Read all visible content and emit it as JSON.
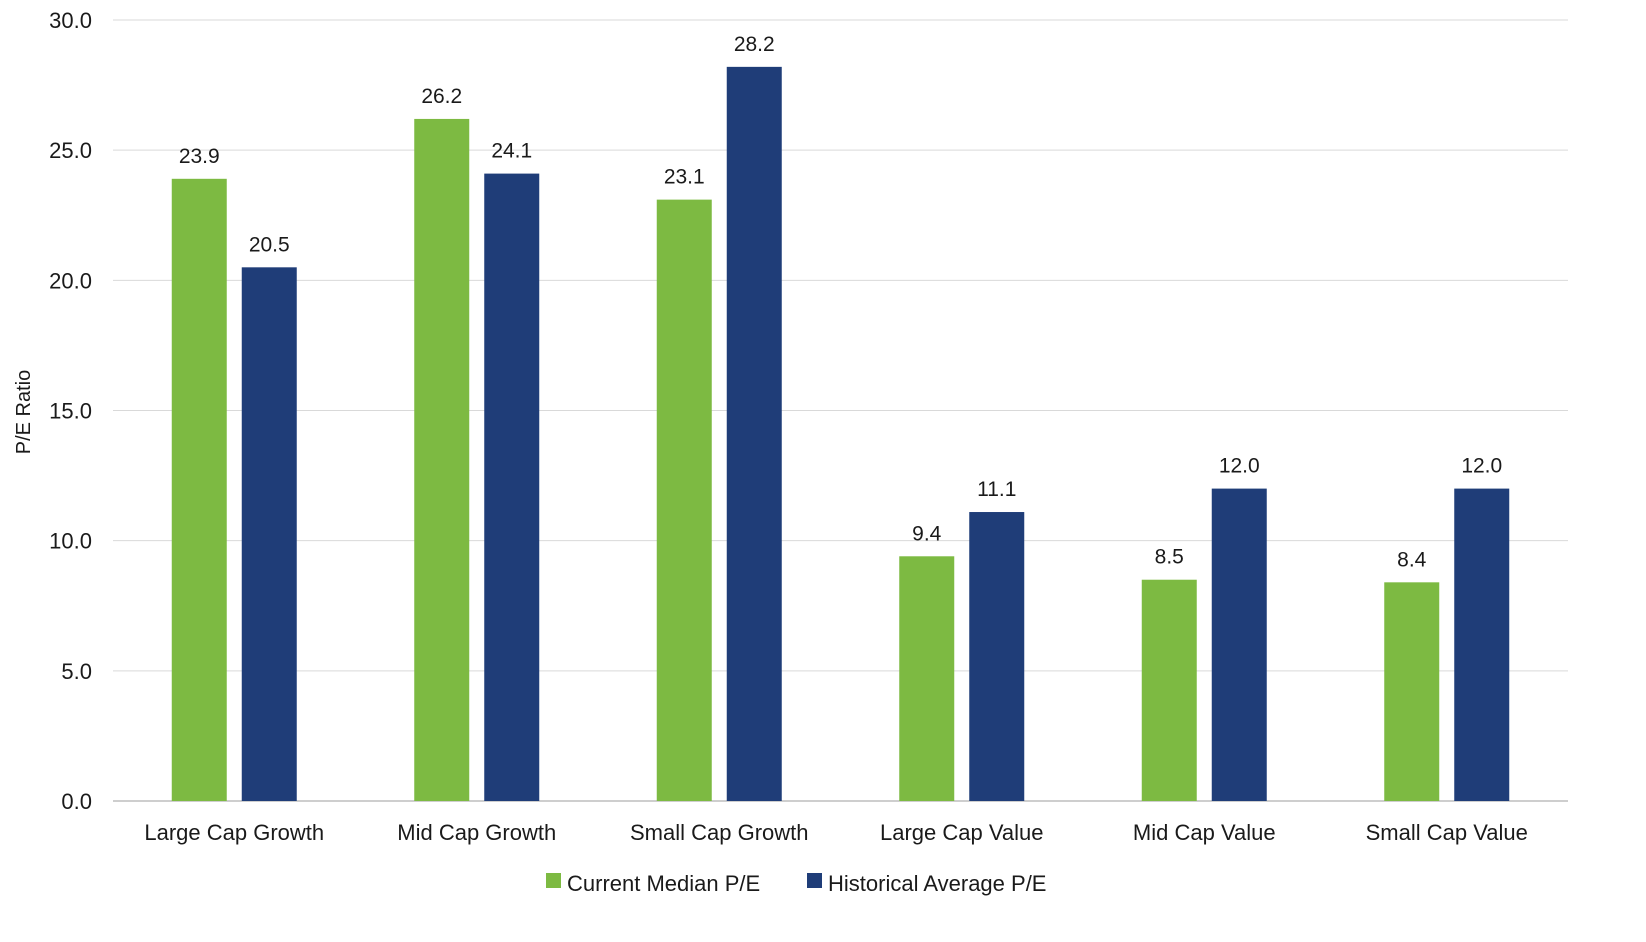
{
  "chart_data": {
    "type": "bar",
    "title": "",
    "xlabel": "",
    "ylabel": "P/E Ratio",
    "ylim": [
      0,
      30
    ],
    "yticks": [
      "0.0",
      "5.0",
      "10.0",
      "15.0",
      "20.0",
      "25.0",
      "30.0"
    ],
    "grid": true,
    "legend_position": "bottom",
    "categories": [
      "Large Cap Growth",
      "Mid Cap Growth",
      "Small Cap Growth",
      "Large Cap Value",
      "Mid Cap Value",
      "Small Cap Value"
    ],
    "series": [
      {
        "name": "Current Median P/E",
        "color": "#7dba42",
        "values": [
          23.9,
          26.2,
          23.1,
          9.4,
          8.5,
          8.4
        ],
        "labels": [
          "23.9",
          "26.2",
          "23.1",
          "9.4",
          "8.5",
          "8.4"
        ]
      },
      {
        "name": "Historical Average P/E",
        "color": "#1f3d78",
        "values": [
          20.5,
          24.1,
          28.2,
          11.1,
          12.0,
          12.0
        ],
        "labels": [
          "20.5",
          "24.1",
          "28.2",
          "11.1",
          "12.0",
          "12.0"
        ]
      }
    ]
  }
}
